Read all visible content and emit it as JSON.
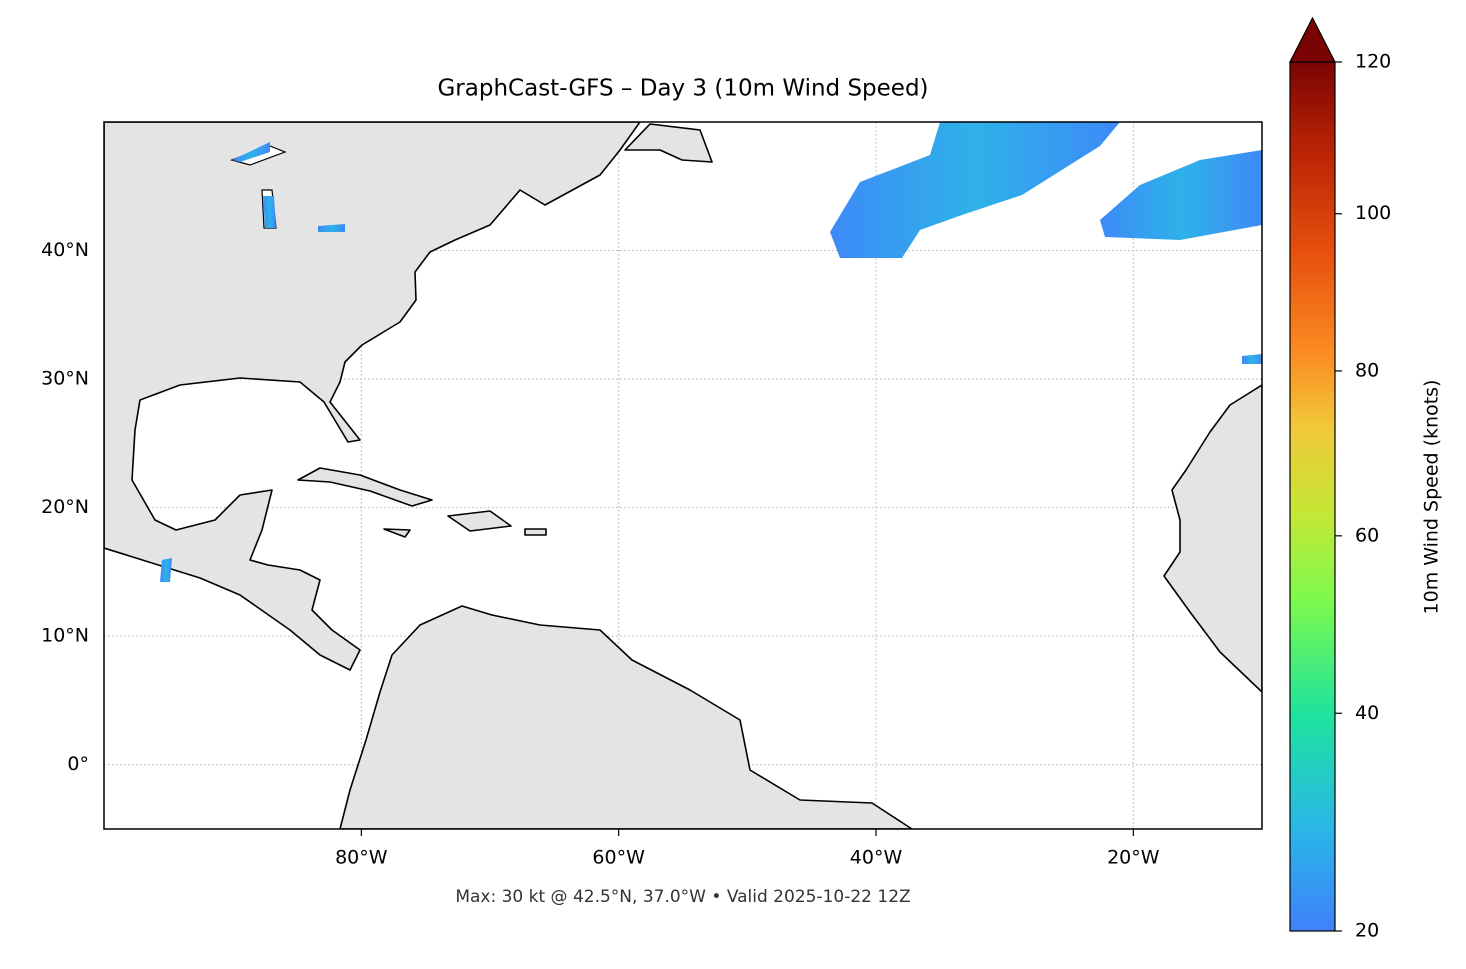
{
  "chart_data": {
    "type": "map",
    "title": "GraphCast-GFS – Day 3 (10m Wind Speed)",
    "footnote": "Max: 30 kt @ 42.5°N, 37.0°W • Valid 2025-10-22 12Z",
    "xlim": [
      -100,
      -10
    ],
    "ylim": [
      -5,
      50
    ],
    "xticks": [
      {
        "value": -80,
        "label": "80°W"
      },
      {
        "value": -60,
        "label": "60°W"
      },
      {
        "value": -40,
        "label": "40°W"
      },
      {
        "value": -20,
        "label": "20°W"
      }
    ],
    "yticks": [
      {
        "value": 0,
        "label": "0°"
      },
      {
        "value": 10,
        "label": "10°N"
      },
      {
        "value": 20,
        "label": "20°N"
      },
      {
        "value": 30,
        "label": "30°N"
      },
      {
        "value": 40,
        "label": "40°N"
      }
    ],
    "grid": true,
    "colorbar": {
      "label": "10m Wind Speed (knots)",
      "clim": [
        20,
        120
      ],
      "ticks": [
        20,
        40,
        60,
        80,
        100,
        120
      ],
      "extend": "max",
      "power_gamma": 0.86
    }
  }
}
